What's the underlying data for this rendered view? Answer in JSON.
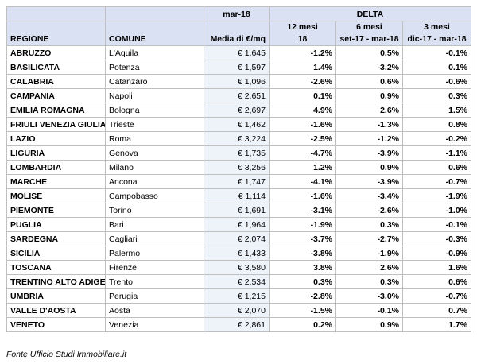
{
  "header": {
    "period_label": "mar-18",
    "delta_label": "DELTA",
    "col_regione": "REGIONE",
    "col_comune": "COMUNE",
    "col_media": "Media di €/mq",
    "col_12m_line1": "12 mesi",
    "col_12m_line2": "18",
    "col_6m_line1": "6 mesi",
    "col_6m_line2": "set-17 - mar-18",
    "col_3m_line1": "3 mesi",
    "col_3m_line2": "dic-17 - mar-18"
  },
  "rows": [
    {
      "regione": "ABRUZZO",
      "comune": "L'Aquila",
      "media": "€ 1,645",
      "d12": "-1.2%",
      "d6": "0.5%",
      "d3": "-0.1%"
    },
    {
      "regione": "BASILICATA",
      "comune": "Potenza",
      "media": "€ 1,597",
      "d12": "1.4%",
      "d6": "-3.2%",
      "d3": "0.1%"
    },
    {
      "regione": "CALABRIA",
      "comune": "Catanzaro",
      "media": "€ 1,096",
      "d12": "-2.6%",
      "d6": "0.6%",
      "d3": "-0.6%"
    },
    {
      "regione": "CAMPANIA",
      "comune": "Napoli",
      "media": "€ 2,651",
      "d12": "0.1%",
      "d6": "0.9%",
      "d3": "0.3%"
    },
    {
      "regione": "EMILIA ROMAGNA",
      "comune": "Bologna",
      "media": "€ 2,697",
      "d12": "4.9%",
      "d6": "2.6%",
      "d3": "1.5%"
    },
    {
      "regione": "FRIULI VENEZIA GIULIA",
      "comune": "Trieste",
      "media": "€ 1,462",
      "d12": "-1.6%",
      "d6": "-1.3%",
      "d3": "0.8%"
    },
    {
      "regione": "LAZIO",
      "comune": "Roma",
      "media": "€ 3,224",
      "d12": "-2.5%",
      "d6": "-1.2%",
      "d3": "-0.2%"
    },
    {
      "regione": "LIGURIA",
      "comune": "Genova",
      "media": "€ 1,735",
      "d12": "-4.7%",
      "d6": "-3.9%",
      "d3": "-1.1%"
    },
    {
      "regione": "LOMBARDIA",
      "comune": "Milano",
      "media": "€ 3,256",
      "d12": "1.2%",
      "d6": "0.9%",
      "d3": "0.6%"
    },
    {
      "regione": "MARCHE",
      "comune": "Ancona",
      "media": "€ 1,747",
      "d12": "-4.1%",
      "d6": "-3.9%",
      "d3": "-0.7%"
    },
    {
      "regione": "MOLISE",
      "comune": "Campobasso",
      "media": "€ 1,114",
      "d12": "-1.6%",
      "d6": "-3.4%",
      "d3": "-1.9%"
    },
    {
      "regione": "PIEMONTE",
      "comune": "Torino",
      "media": "€ 1,691",
      "d12": "-3.1%",
      "d6": "-2.6%",
      "d3": "-1.0%"
    },
    {
      "regione": "PUGLIA",
      "comune": "Bari",
      "media": "€ 1,964",
      "d12": "-1.9%",
      "d6": "0.3%",
      "d3": "-0.1%"
    },
    {
      "regione": "SARDEGNA",
      "comune": "Cagliari",
      "media": "€ 2,074",
      "d12": "-3.7%",
      "d6": "-2.7%",
      "d3": "-0.3%"
    },
    {
      "regione": "SICILIA",
      "comune": "Palermo",
      "media": "€ 1,433",
      "d12": "-3.8%",
      "d6": "-1.9%",
      "d3": "-0.9%"
    },
    {
      "regione": "TOSCANA",
      "comune": "Firenze",
      "media": "€ 3,580",
      "d12": "3.8%",
      "d6": "2.6%",
      "d3": "1.6%"
    },
    {
      "regione": "TRENTINO ALTO ADIGE",
      "comune": "Trento",
      "media": "€ 2,534",
      "d12": "0.3%",
      "d6": "0.3%",
      "d3": "0.6%"
    },
    {
      "regione": "UMBRIA",
      "comune": "Perugia",
      "media": "€ 1,215",
      "d12": "-2.8%",
      "d6": "-3.0%",
      "d3": "-0.7%"
    },
    {
      "regione": "VALLE D'AOSTA",
      "comune": "Aosta",
      "media": "€ 2,070",
      "d12": "-1.5%",
      "d6": "-0.1%",
      "d3": "0.7%"
    },
    {
      "regione": "VENETO",
      "comune": "Venezia",
      "media": "€ 2,861",
      "d12": "0.2%",
      "d6": "0.9%",
      "d3": "1.7%"
    }
  ],
  "footer": {
    "source": "Fonte Ufficio Studi Immobiliare.it"
  }
}
